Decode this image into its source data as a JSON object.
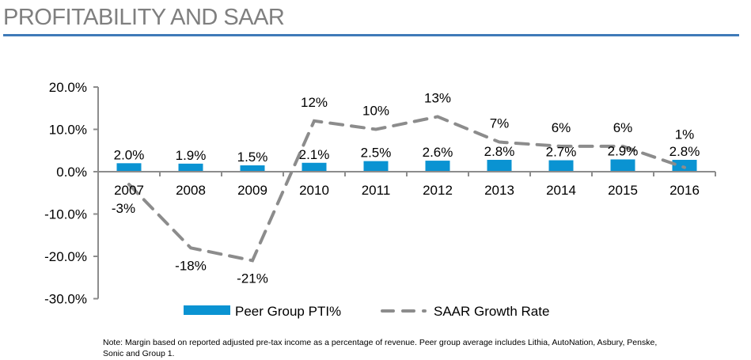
{
  "title": "PROFITABILITY AND SAAR",
  "note": "Note:  Margin based on reported adjusted pre-tax income as a percentage of revenue.  Peer group average includes Lithia, AutoNation, Asbury, Penske, Sonic and Group 1.",
  "chart_data": {
    "type": "bar",
    "categories": [
      "2007",
      "2008",
      "2009",
      "2010",
      "2011",
      "2012",
      "2013",
      "2014",
      "2015",
      "2016"
    ],
    "series": [
      {
        "name": "Peer Group PTI%",
        "type": "bar",
        "values": [
          2.0,
          1.9,
          1.5,
          2.1,
          2.5,
          2.6,
          2.8,
          2.7,
          2.9,
          2.8
        ],
        "labels": [
          "2.0%",
          "1.9%",
          "1.5%",
          "2.1%",
          "2.5%",
          "2.6%",
          "2.8%",
          "2.7%",
          "2.9%",
          "2.8%"
        ],
        "color": "#0a93d2"
      },
      {
        "name": "SAAR  Growth Rate",
        "type": "line-dashed",
        "values": [
          -3,
          -18,
          -21,
          12,
          10,
          13,
          7,
          6,
          6,
          1
        ],
        "labels": [
          "-3%",
          "-18%",
          "-21%",
          "12%",
          "10%",
          "13%",
          "7%",
          "6%",
          "6%",
          "1%"
        ],
        "color": "#8c8c8c"
      }
    ],
    "yticks": [
      "20.0%",
      "10.0%",
      "0.0%",
      "-10.0%",
      "-20.0%",
      "-30.0%"
    ],
    "ytick_values": [
      20,
      10,
      0,
      -10,
      -20,
      -30
    ],
    "ylim": [
      -30,
      20
    ],
    "grid": false,
    "legend": "bottom"
  }
}
